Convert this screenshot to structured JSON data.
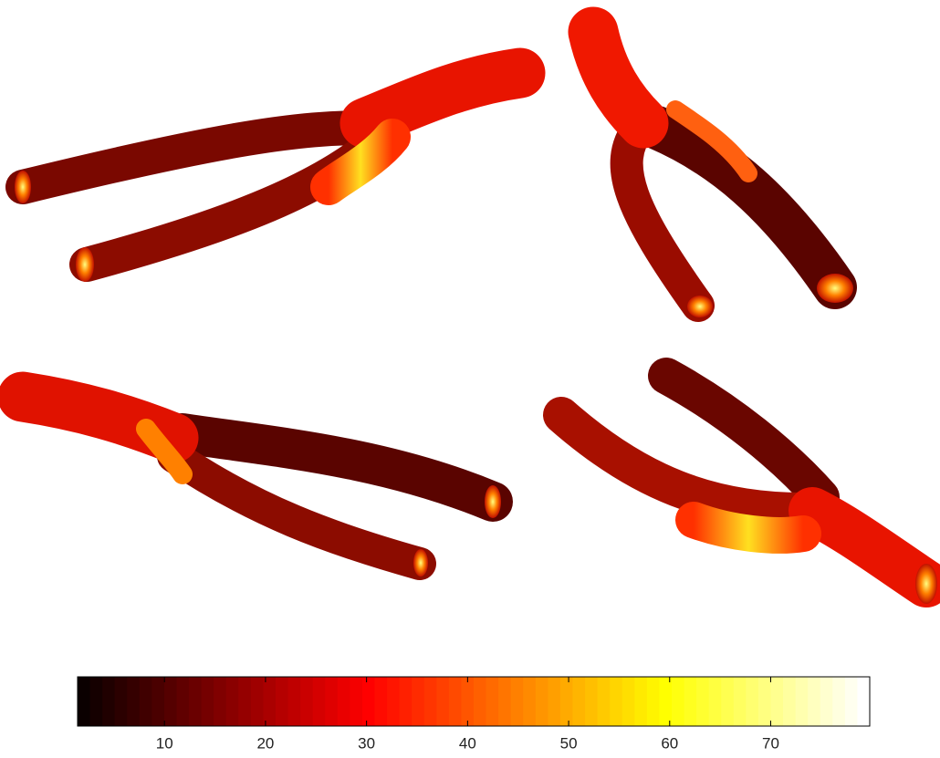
{
  "chart_data": {
    "type": "colorbar",
    "colormap": "hot",
    "colormap_size": 64,
    "xlim": [
      1.4,
      79.8
    ],
    "xticks": [
      10,
      20,
      30,
      40,
      50,
      60,
      70
    ]
  }
}
